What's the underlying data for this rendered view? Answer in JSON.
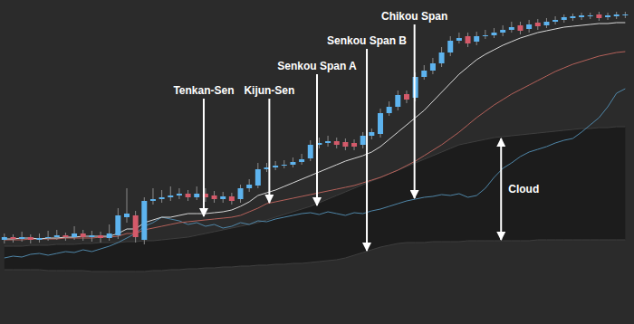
{
  "chart_data": {
    "type": "candlestick",
    "tick_labels": false,
    "x": [
      0,
      1,
      2,
      3,
      4,
      5,
      6,
      7,
      8,
      9,
      10,
      11,
      12,
      13,
      14,
      15,
      16,
      17,
      18,
      19,
      20,
      21,
      22,
      23,
      24,
      25,
      26,
      27,
      28,
      29,
      30,
      31,
      32,
      33,
      34,
      35,
      36,
      37,
      38,
      39,
      40,
      41,
      42,
      43,
      44,
      45,
      46,
      47,
      48,
      49,
      50,
      51,
      52,
      53,
      54,
      55,
      56,
      57,
      58,
      59,
      60,
      61,
      62,
      63,
      64,
      65,
      66,
      67,
      68,
      69,
      70,
      71
    ],
    "xlim": [
      -0.5,
      72
    ],
    "ylim": [
      0,
      358
    ],
    "open": [
      93,
      96,
      94,
      96,
      93,
      95,
      96,
      98,
      96,
      100,
      96,
      98,
      95,
      98,
      118,
      120,
      93,
      136,
      138,
      140,
      142,
      144,
      140,
      144,
      142,
      138,
      141,
      138,
      150,
      153,
      171,
      173,
      175,
      176,
      179,
      183,
      198,
      200,
      202,
      201,
      200,
      198,
      208,
      210,
      233,
      240,
      254,
      250,
      273,
      280,
      288,
      300,
      313,
      318,
      312,
      318,
      319,
      322,
      325,
      330,
      326,
      333,
      330,
      334,
      336,
      338,
      339,
      340,
      342,
      339,
      340,
      341
    ],
    "high": [
      100,
      99,
      102,
      99,
      100,
      103,
      104,
      101,
      108,
      104,
      103,
      102,
      110,
      128,
      150,
      125,
      140,
      150,
      148,
      152,
      150,
      148,
      152,
      150,
      147,
      146,
      145,
      154,
      160,
      178,
      178,
      180,
      181,
      184,
      188,
      203,
      206,
      208,
      206,
      205,
      204,
      212,
      216,
      238,
      246,
      258,
      258,
      278,
      286,
      294,
      306,
      318,
      322,
      322,
      323,
      325,
      327,
      330,
      334,
      334,
      336,
      337,
      338,
      340,
      342,
      343,
      344,
      344,
      345,
      344,
      345,
      345
    ],
    "low": [
      89,
      90,
      91,
      89,
      90,
      92,
      93,
      92,
      93,
      92,
      91,
      90,
      92,
      94,
      112,
      90,
      88,
      132,
      134,
      136,
      138,
      136,
      137,
      135,
      134,
      134,
      132,
      134,
      146,
      150,
      168,
      170,
      172,
      173,
      176,
      180,
      194,
      196,
      194,
      192,
      192,
      194,
      204,
      206,
      230,
      236,
      244,
      246,
      270,
      276,
      284,
      296,
      310,
      306,
      308,
      315,
      316,
      318,
      322,
      320,
      322,
      325,
      327,
      331,
      333,
      335,
      336,
      337,
      335,
      336,
      337,
      338
    ],
    "close": [
      96,
      94,
      96,
      93,
      95,
      96,
      98,
      96,
      100,
      96,
      98,
      95,
      100,
      120,
      122,
      96,
      136,
      138,
      140,
      142,
      144,
      140,
      144,
      140,
      138,
      141,
      136,
      150,
      154,
      171,
      173,
      175,
      176,
      179,
      182,
      198,
      200,
      202,
      198,
      196,
      196,
      208,
      212,
      233,
      240,
      253,
      248,
      273,
      280,
      288,
      300,
      313,
      316,
      310,
      318,
      319,
      322,
      325,
      328,
      324,
      331,
      329,
      334,
      336,
      339,
      340,
      341,
      341,
      338,
      341,
      342,
      342
    ],
    "colors": [
      "#5db3ee",
      "#d45a6a",
      "#5db3ee",
      "#d45a6a",
      "#5db3ee",
      "#5db3ee",
      "#5db3ee",
      "#d45a6a",
      "#5db3ee",
      "#d45a6a",
      "#5db3ee",
      "#d45a6a",
      "#5db3ee",
      "#5db3ee",
      "#5db3ee",
      "#d45a6a",
      "#5db3ee",
      "#5db3ee",
      "#5db3ee",
      "#5db3ee",
      "#5db3ee",
      "#d45a6a",
      "#5db3ee",
      "#d45a6a",
      "#d45a6a",
      "#5db3ee",
      "#d45a6a",
      "#5db3ee",
      "#5db3ee",
      "#5db3ee",
      "#5db3ee",
      "#5db3ee",
      "#5db3ee",
      "#5db3ee",
      "#5db3ee",
      "#5db3ee",
      "#5db3ee",
      "#5db3ee",
      "#d45a6a",
      "#d45a6a",
      "#d45a6a",
      "#5db3ee",
      "#5db3ee",
      "#5db3ee",
      "#5db3ee",
      "#5db3ee",
      "#d45a6a",
      "#5db3ee",
      "#5db3ee",
      "#5db3ee",
      "#5db3ee",
      "#5db3ee",
      "#5db3ee",
      "#d45a6a",
      "#5db3ee",
      "#5db3ee",
      "#5db3ee",
      "#5db3ee",
      "#5db3ee",
      "#d45a6a",
      "#5db3ee",
      "#d45a6a",
      "#5db3ee",
      "#5db3ee",
      "#5db3ee",
      "#5db3ee",
      "#5db3ee",
      "#5db3ee",
      "#d45a6a",
      "#5db3ee",
      "#5db3ee",
      "#5db3ee"
    ],
    "series": [
      {
        "type": "band",
        "color": "#1c1c1c",
        "values": [
          86,
          86,
          86,
          87,
          87,
          87,
          88,
          88,
          88,
          89,
          89,
          90,
          90,
          90,
          91,
          91,
          92,
          92,
          93,
          94,
          95,
          96,
          98,
          100,
          102,
          104,
          106,
          108,
          110,
          112,
          115,
          118,
          121,
          124,
          127,
          130,
          134,
          138,
          142,
          146,
          150,
          154,
          158,
          162,
          166,
          170,
          174,
          178,
          182,
          186,
          190,
          194,
          198,
          200,
          202,
          204,
          206,
          207,
          208,
          209,
          210,
          211,
          212,
          213,
          214,
          215,
          216,
          216,
          217,
          217,
          218,
          218
        ],
        "values_low": [
          60,
          60,
          60,
          60,
          60,
          59,
          59,
          59,
          59,
          59,
          58,
          58,
          58,
          58,
          58,
          58,
          58,
          59,
          59,
          60,
          60,
          61,
          61,
          62,
          62,
          63,
          63,
          64,
          64,
          65,
          65,
          66,
          66,
          67,
          67,
          68,
          69,
          70,
          71,
          73,
          76,
          79,
          82,
          85,
          87,
          89,
          90,
          90,
          90,
          91,
          91,
          91,
          91,
          92,
          92,
          92,
          92,
          92,
          92,
          92,
          92,
          93,
          93,
          93,
          93,
          93,
          93,
          93,
          93,
          93,
          93,
          93
        ]
      },
      {
        "type": "line",
        "color": "#4f86a8",
        "values": [
          73,
          75,
          74,
          77,
          78,
          76,
          78,
          80,
          79,
          82,
          80,
          83,
          86,
          90,
          95,
          100,
          108,
          112,
          118,
          116,
          114,
          110,
          112,
          108,
          110,
          106,
          108,
          112,
          110,
          114,
          113,
          116,
          118,
          120,
          122,
          123,
          121,
          124,
          122,
          120,
          123,
          122,
          125,
          127,
          130,
          133,
          136,
          138,
          140,
          141,
          143,
          142,
          144,
          140,
          142,
          150,
          162,
          172,
          178,
          185,
          190,
          193,
          196,
          200,
          203,
          205,
          212,
          220,
          228,
          240,
          255,
          260
        ]
      },
      {
        "type": "line",
        "color": "#b5615a",
        "values": [
          93,
          93,
          93,
          94,
          94,
          94,
          94,
          95,
          95,
          95,
          95,
          96,
          96,
          97,
          100,
          100,
          104,
          106,
          108,
          110,
          112,
          113,
          114,
          115,
          116,
          117,
          118,
          120,
          124,
          128,
          133,
          135,
          137,
          139,
          141,
          143,
          145,
          147,
          149,
          151,
          153,
          156,
          159,
          162,
          166,
          170,
          175,
          180,
          186,
          192,
          198,
          205,
          212,
          220,
          228,
          235,
          242,
          248,
          254,
          259,
          264,
          269,
          274,
          279,
          283,
          287,
          290,
          293,
          296,
          298,
          300,
          301
        ]
      },
      {
        "type": "line",
        "color": "#d9d9d9",
        "values": [
          94,
          94,
          95,
          95,
          94,
          95,
          95,
          96,
          96,
          97,
          97,
          97,
          97,
          100,
          105,
          105,
          112,
          115,
          118,
          118,
          120,
          122,
          122,
          122,
          123,
          124,
          126,
          130,
          135,
          142,
          145,
          148,
          152,
          156,
          160,
          164,
          168,
          172,
          176,
          180,
          183,
          186,
          190,
          196,
          204,
          212,
          220,
          228,
          236,
          246,
          256,
          266,
          276,
          284,
          292,
          298,
          303,
          308,
          312,
          316,
          319,
          322,
          324,
          326,
          328,
          329,
          330,
          331,
          332,
          332,
          333,
          333
        ]
      }
    ],
    "annotations": [
      {
        "text": "Tenkan-Sen",
        "x": 22.8,
        "y": 118
      },
      {
        "text": "Kijun-Sen",
        "x": 30.3,
        "y": 133
      },
      {
        "text": "Senkou Span A",
        "x": 35.75,
        "y": 130
      },
      {
        "text": "Senkou Span B",
        "x": 41.45,
        "y": 80
      },
      {
        "text": "Chikou Span",
        "x": 46.9,
        "y": 138
      },
      {
        "text": "Cloud",
        "x": 56.8,
        "y": [
          92,
          206
        ]
      }
    ]
  }
}
